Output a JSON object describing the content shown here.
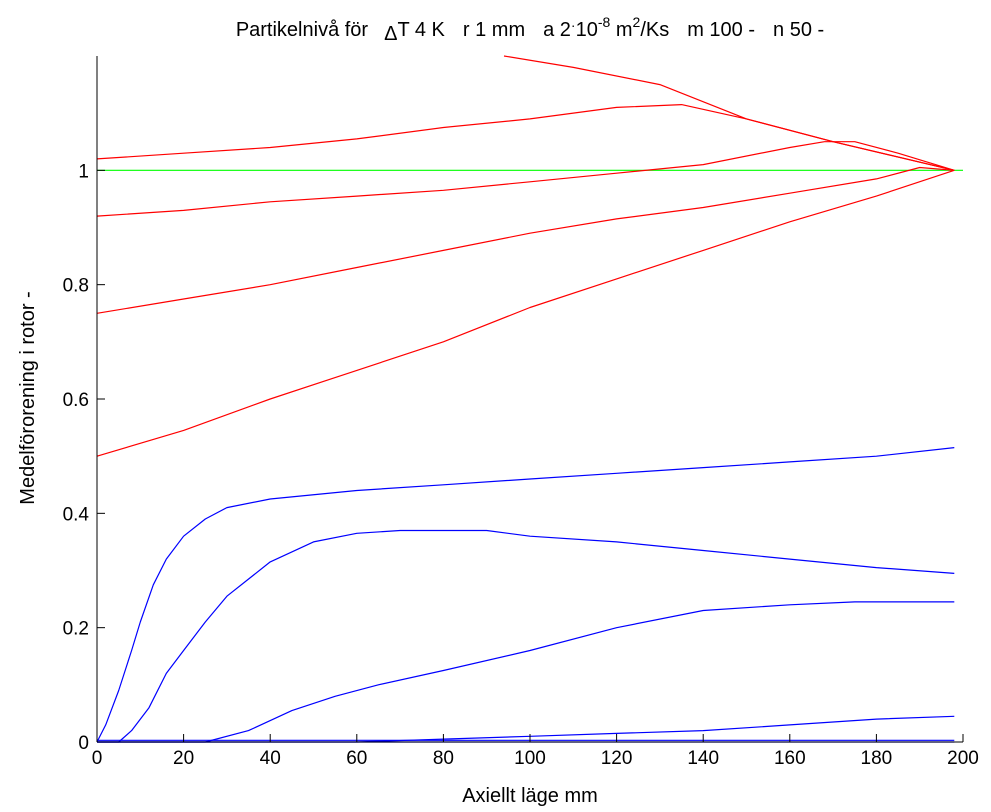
{
  "chart_data": {
    "type": "line",
    "title": {
      "prefix": "Partikelnivå för",
      "delta_symbol": "Δ",
      "delta_text": "T 4 K",
      "r_text": "r 1 mm",
      "a_text": "a 2",
      "a_dot": "·",
      "a_base": "10",
      "a_exp": "-8",
      "a_unit_m": " m",
      "a_unit_exp": "2",
      "a_unit_rest": "/Ks",
      "m_text": "m 100 -",
      "n_text": "n 50 -"
    },
    "xlabel": "Axiellt läge  mm",
    "ylabel": "Medelförorening i rotor  -",
    "xlim": [
      0,
      200
    ],
    "ylim": [
      0,
      1.2
    ],
    "xticks": [
      0,
      20,
      40,
      60,
      80,
      100,
      120,
      140,
      160,
      180,
      200
    ],
    "xtick_labels": [
      "0",
      "20",
      "40",
      "60",
      "80",
      "100",
      "120",
      "140",
      "160",
      "180",
      "200"
    ],
    "yticks": [
      0,
      0.2,
      0.4,
      0.6,
      0.8,
      1
    ],
    "ytick_labels": [
      "0",
      "0.2",
      "0.4",
      "0.6",
      "0.8",
      "1"
    ],
    "grid": false,
    "colors": {
      "red": "#ff0000",
      "blue": "#0000ff",
      "green": "#00ff00",
      "axis": "#000000"
    },
    "series": [
      {
        "color": "#ff0000",
        "points": [
          [
            94,
            1.2
          ],
          [
            110,
            1.18
          ],
          [
            130,
            1.15
          ],
          [
            150,
            1.09
          ],
          [
            170,
            1.05
          ],
          [
            198,
            1.0
          ]
        ]
      },
      {
        "color": "#ff0000",
        "points": [
          [
            0,
            1.02
          ],
          [
            20,
            1.03
          ],
          [
            40,
            1.04
          ],
          [
            60,
            1.055
          ],
          [
            80,
            1.075
          ],
          [
            100,
            1.09
          ],
          [
            120,
            1.11
          ],
          [
            135,
            1.115
          ],
          [
            150,
            1.09
          ],
          [
            170,
            1.05
          ],
          [
            198,
            1.0
          ]
        ]
      },
      {
        "color": "#ff0000",
        "points": [
          [
            0,
            0.92
          ],
          [
            20,
            0.93
          ],
          [
            40,
            0.945
          ],
          [
            60,
            0.955
          ],
          [
            80,
            0.965
          ],
          [
            100,
            0.98
          ],
          [
            120,
            0.995
          ],
          [
            140,
            1.01
          ],
          [
            160,
            1.04
          ],
          [
            168,
            1.05
          ],
          [
            175,
            1.05
          ],
          [
            185,
            1.03
          ],
          [
            198,
            1.0
          ]
        ]
      },
      {
        "color": "#ff0000",
        "points": [
          [
            0,
            0.75
          ],
          [
            20,
            0.775
          ],
          [
            40,
            0.8
          ],
          [
            60,
            0.83
          ],
          [
            80,
            0.86
          ],
          [
            100,
            0.89
          ],
          [
            120,
            0.915
          ],
          [
            140,
            0.935
          ],
          [
            160,
            0.96
          ],
          [
            180,
            0.985
          ],
          [
            190,
            1.005
          ],
          [
            198,
            1.0
          ]
        ]
      },
      {
        "color": "#ff0000",
        "points": [
          [
            0,
            0.5
          ],
          [
            20,
            0.545
          ],
          [
            40,
            0.6
          ],
          [
            60,
            0.65
          ],
          [
            80,
            0.7
          ],
          [
            100,
            0.76
          ],
          [
            120,
            0.81
          ],
          [
            140,
            0.86
          ],
          [
            160,
            0.91
          ],
          [
            180,
            0.955
          ],
          [
            198,
            1.0
          ]
        ]
      },
      {
        "color": "#0000ff",
        "points": [
          [
            0,
            0.0
          ],
          [
            2,
            0.03
          ],
          [
            5,
            0.09
          ],
          [
            8,
            0.16
          ],
          [
            10,
            0.21
          ],
          [
            13,
            0.275
          ],
          [
            16,
            0.32
          ],
          [
            20,
            0.36
          ],
          [
            25,
            0.39
          ],
          [
            30,
            0.41
          ],
          [
            40,
            0.425
          ],
          [
            60,
            0.44
          ],
          [
            80,
            0.45
          ],
          [
            100,
            0.46
          ],
          [
            120,
            0.47
          ],
          [
            140,
            0.48
          ],
          [
            160,
            0.49
          ],
          [
            180,
            0.5
          ],
          [
            198,
            0.515
          ]
        ]
      },
      {
        "color": "#0000ff",
        "points": [
          [
            0,
            0.0
          ],
          [
            5,
            0.0
          ],
          [
            8,
            0.02
          ],
          [
            12,
            0.06
          ],
          [
            16,
            0.12
          ],
          [
            20,
            0.16
          ],
          [
            25,
            0.21
          ],
          [
            30,
            0.255
          ],
          [
            40,
            0.315
          ],
          [
            50,
            0.35
          ],
          [
            60,
            0.365
          ],
          [
            70,
            0.37
          ],
          [
            90,
            0.37
          ],
          [
            100,
            0.36
          ],
          [
            120,
            0.35
          ],
          [
            140,
            0.335
          ],
          [
            160,
            0.32
          ],
          [
            180,
            0.305
          ],
          [
            198,
            0.295
          ]
        ]
      },
      {
        "color": "#0000ff",
        "points": [
          [
            0,
            0.0
          ],
          [
            25,
            0.0
          ],
          [
            35,
            0.02
          ],
          [
            45,
            0.055
          ],
          [
            55,
            0.08
          ],
          [
            65,
            0.1
          ],
          [
            80,
            0.125
          ],
          [
            100,
            0.16
          ],
          [
            120,
            0.2
          ],
          [
            140,
            0.23
          ],
          [
            160,
            0.24
          ],
          [
            175,
            0.245
          ],
          [
            198,
            0.245
          ]
        ]
      },
      {
        "color": "#0000ff",
        "points": [
          [
            0,
            0.0
          ],
          [
            60,
            0.0
          ],
          [
            80,
            0.005
          ],
          [
            100,
            0.01
          ],
          [
            120,
            0.015
          ],
          [
            140,
            0.02
          ],
          [
            160,
            0.03
          ],
          [
            180,
            0.04
          ],
          [
            198,
            0.045
          ]
        ]
      },
      {
        "color": "#0000ff",
        "points": [
          [
            0,
            0.003
          ],
          [
            100,
            0.003
          ],
          [
            198,
            0.003
          ]
        ]
      },
      {
        "color": "#0000ff",
        "points": [
          [
            0,
            0.0
          ],
          [
            198,
            0.0
          ]
        ]
      }
    ],
    "reference_lines": [
      {
        "color": "#00ff00",
        "y": 1.0,
        "x_start": 0,
        "x_end": 200
      }
    ]
  }
}
